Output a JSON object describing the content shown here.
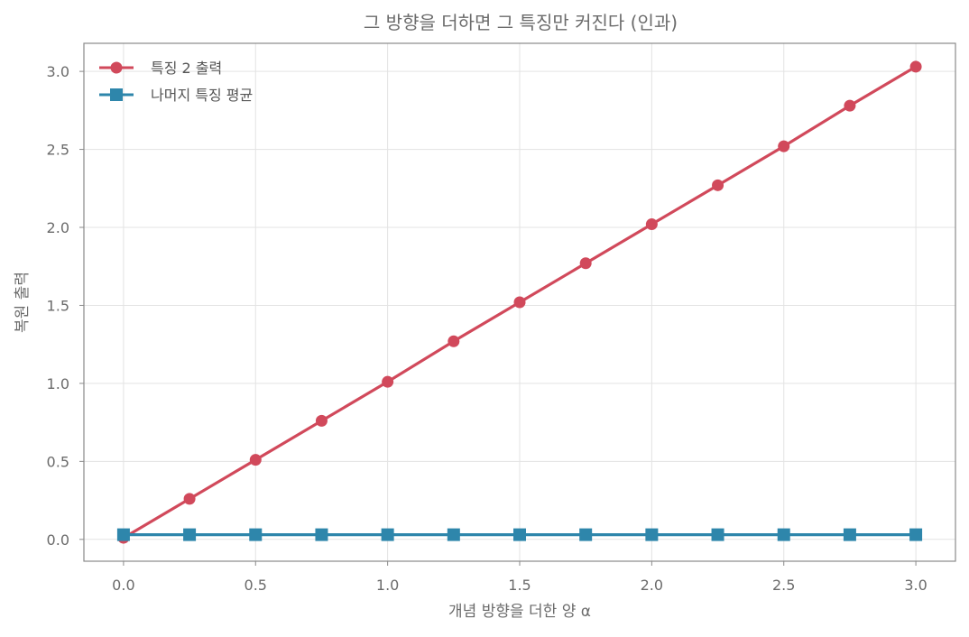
{
  "chart_data": {
    "type": "line",
    "title": "그 방향을 더하면 그 특징만 커진다 (인과)",
    "xlabel": "개념 방향을 더한 양 α",
    "ylabel": "복원 출력",
    "xlim": [
      -0.15,
      3.15
    ],
    "ylim": [
      -0.14,
      3.18
    ],
    "x_ticks": [
      "0.0",
      "0.5",
      "1.0",
      "1.5",
      "2.0",
      "2.5",
      "3.0"
    ],
    "x_tick_values": [
      0,
      0.5,
      1.0,
      1.5,
      2.0,
      2.5,
      3.0
    ],
    "y_ticks": [
      "0.0",
      "0.5",
      "1.0",
      "1.5",
      "2.0",
      "2.5",
      "3.0"
    ],
    "y_tick_values": [
      0,
      0.5,
      1.0,
      1.5,
      2.0,
      2.5,
      3.0
    ],
    "grid": true,
    "legend_position": "top-left",
    "x": [
      0,
      0.25,
      0.5,
      0.75,
      1.0,
      1.25,
      1.5,
      1.75,
      2.0,
      2.25,
      2.5,
      2.75,
      3.0
    ],
    "series": [
      {
        "name": "특징 2 출력",
        "color": "#d1495b",
        "marker": "circle",
        "values": [
          0.01,
          0.26,
          0.51,
          0.76,
          1.01,
          1.27,
          1.52,
          1.77,
          2.02,
          2.27,
          2.52,
          2.78,
          3.03
        ]
      },
      {
        "name": "나머지 특징 평균",
        "color": "#2e86ab",
        "marker": "square",
        "values": [
          0.03,
          0.03,
          0.03,
          0.03,
          0.03,
          0.03,
          0.03,
          0.03,
          0.03,
          0.03,
          0.03,
          0.03,
          0.03
        ]
      }
    ]
  }
}
